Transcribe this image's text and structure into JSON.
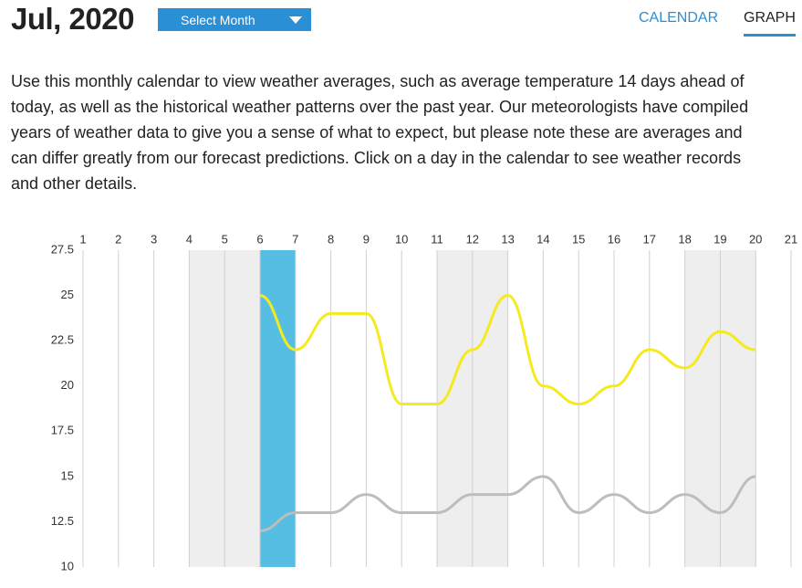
{
  "header": {
    "title": "Jul, 2020",
    "select": "Select Month",
    "tabs": [
      "CALENDAR",
      "GRAPH"
    ]
  },
  "description": "Use this monthly calendar to view weather averages, such as average temperature 14 days ahead of today, as well as the historical weather patterns over the past year. Our meteorologists have compiled years of weather data to give you a sense of what to expect, but please note these are averages and can differ greatly from our forecast predictions. Click on a day in the calendar to see weather records and other details.",
  "chart_data": {
    "type": "line",
    "x": [
      6,
      7,
      8,
      9,
      10,
      11,
      12,
      13,
      14,
      15,
      16,
      17,
      18,
      19,
      20
    ],
    "series": [
      {
        "color": "#f5ea1f",
        "values": [
          25,
          22,
          24,
          24,
          19,
          19,
          22,
          25,
          20,
          19,
          20,
          22,
          21,
          23,
          22
        ]
      },
      {
        "color": "#bdbdbd",
        "values": [
          12,
          13,
          13,
          14,
          13,
          13,
          14,
          14,
          15,
          13,
          14,
          13,
          14,
          13,
          15
        ]
      }
    ],
    "xlim": [
      1,
      21
    ],
    "xticks": [
      1,
      2,
      3,
      4,
      5,
      6,
      7,
      8,
      9,
      10,
      11,
      12,
      13,
      14,
      15,
      16,
      17,
      18,
      19,
      20,
      21
    ],
    "ylim": [
      10,
      27.5
    ],
    "yticks": [
      10,
      12.5,
      15,
      17.5,
      20,
      22.5,
      25,
      27.5
    ],
    "shaded": [
      [
        4,
        6
      ],
      [
        11,
        13
      ],
      [
        18,
        20
      ]
    ],
    "shade_color": "#eeeeee",
    "highlight": [
      6,
      7
    ],
    "highlight_color": "#56bde3",
    "grid": true
  }
}
